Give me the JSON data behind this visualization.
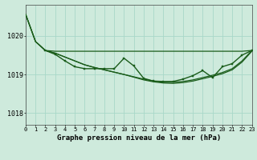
{
  "bg_color": "#ceeadc",
  "grid_color": "#a8d8c8",
  "line_color": "#1a5c1a",
  "title": "Graphe pression niveau de la mer (hPa)",
  "xlim": [
    0,
    23
  ],
  "ylim": [
    1017.7,
    1020.8
  ],
  "yticks": [
    1018,
    1019,
    1020
  ],
  "xticks": [
    0,
    1,
    2,
    3,
    4,
    5,
    6,
    7,
    8,
    9,
    10,
    11,
    12,
    13,
    14,
    15,
    16,
    17,
    18,
    19,
    20,
    21,
    22,
    23
  ],
  "s1_x": [
    0,
    1,
    2,
    3,
    4,
    5,
    6,
    7,
    8,
    9,
    10,
    11,
    12,
    13,
    14,
    15,
    16,
    17,
    18,
    19,
    20,
    21,
    22,
    23
  ],
  "s1_y": [
    1020.55,
    1019.85,
    1019.62,
    1019.6,
    1019.6,
    1019.6,
    1019.6,
    1019.6,
    1019.6,
    1019.6,
    1019.6,
    1019.6,
    1019.6,
    1019.6,
    1019.6,
    1019.6,
    1019.6,
    1019.6,
    1019.6,
    1019.6,
    1019.6,
    1019.6,
    1019.6,
    1019.62
  ],
  "s2_x": [
    0,
    1,
    2,
    3,
    4,
    5,
    6,
    7,
    8,
    9,
    10,
    11,
    12,
    13,
    14,
    15,
    16,
    17,
    18,
    19,
    20,
    21,
    22,
    23
  ],
  "s2_y": [
    1020.55,
    1019.85,
    1019.62,
    1019.55,
    1019.45,
    1019.35,
    1019.25,
    1019.18,
    1019.12,
    1019.06,
    1019.0,
    1018.94,
    1018.88,
    1018.83,
    1018.8,
    1018.8,
    1018.82,
    1018.86,
    1018.92,
    1018.98,
    1019.05,
    1019.15,
    1019.35,
    1019.62
  ],
  "s3_x": [
    0,
    1,
    2,
    3,
    4,
    5,
    6,
    7,
    8,
    9,
    10,
    11,
    12,
    13,
    14,
    15,
    16,
    17,
    18,
    19,
    20,
    21,
    22,
    23
  ],
  "s3_y": [
    1020.55,
    1019.85,
    1019.62,
    1019.55,
    1019.45,
    1019.35,
    1019.25,
    1019.18,
    1019.12,
    1019.06,
    1019.0,
    1018.93,
    1018.86,
    1018.81,
    1018.78,
    1018.77,
    1018.79,
    1018.83,
    1018.89,
    1018.95,
    1019.02,
    1019.12,
    1019.32,
    1019.6
  ],
  "s4_x": [
    2,
    3,
    4,
    5,
    6,
    7,
    8,
    9,
    10,
    11,
    12,
    13,
    14,
    15,
    16,
    17,
    18,
    19,
    20,
    21,
    22,
    23
  ],
  "s4_y": [
    1019.62,
    1019.52,
    1019.35,
    1019.2,
    1019.15,
    1019.15,
    1019.15,
    1019.15,
    1019.42,
    1019.22,
    1018.9,
    1018.83,
    1018.82,
    1018.82,
    1018.88,
    1018.97,
    1019.1,
    1018.92,
    1019.2,
    1019.28,
    1019.5,
    1019.62
  ]
}
